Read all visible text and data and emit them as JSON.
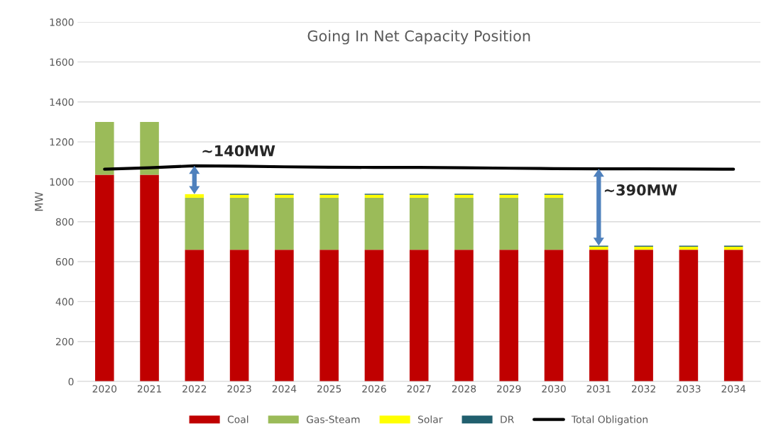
{
  "chart_data": {
    "type": "bar",
    "title": "Going In Net Capacity Position",
    "ylabel": "MW",
    "stacked": true,
    "categories": [
      "2020",
      "2021",
      "2022",
      "2023",
      "2024",
      "2025",
      "2026",
      "2027",
      "2028",
      "2029",
      "2030",
      "2031",
      "2032",
      "2033",
      "2034"
    ],
    "series": [
      {
        "name": "Coal",
        "color": "#c00000",
        "values": [
          1035,
          1035,
          660,
          660,
          660,
          660,
          660,
          660,
          660,
          660,
          660,
          660,
          660,
          660,
          660
        ]
      },
      {
        "name": "Gas-Steam",
        "color": "#9bbb59",
        "values": [
          265,
          265,
          260,
          260,
          260,
          260,
          260,
          260,
          260,
          260,
          260,
          0,
          0,
          0,
          0
        ]
      },
      {
        "name": "Solar",
        "color": "#ffff00",
        "values": [
          0,
          0,
          18,
          15,
          15,
          15,
          15,
          15,
          15,
          15,
          15,
          15,
          15,
          15,
          15
        ]
      },
      {
        "name": "DR",
        "color": "#215f6e",
        "values": [
          0,
          0,
          0,
          5,
          5,
          5,
          5,
          5,
          5,
          5,
          5,
          5,
          5,
          5,
          5
        ]
      },
      {
        "name": "Total Obligation",
        "type": "line",
        "color": "#000000",
        "values": [
          1063,
          1070,
          1080,
          1078,
          1075,
          1073,
          1072,
          1072,
          1070,
          1068,
          1066,
          1065,
          1065,
          1064,
          1063
        ]
      }
    ],
    "annotations": [
      {
        "text": "~140MW",
        "x": "2022",
        "y": 1080
      },
      {
        "text": "~390MW",
        "x": "2031",
        "y": 1065
      }
    ],
    "ylim": [
      0,
      1800
    ],
    "yticks": [
      0,
      200,
      400,
      600,
      800,
      1000,
      1200,
      1400,
      1600,
      1800
    ],
    "grid": "y",
    "legend": "bottom"
  }
}
